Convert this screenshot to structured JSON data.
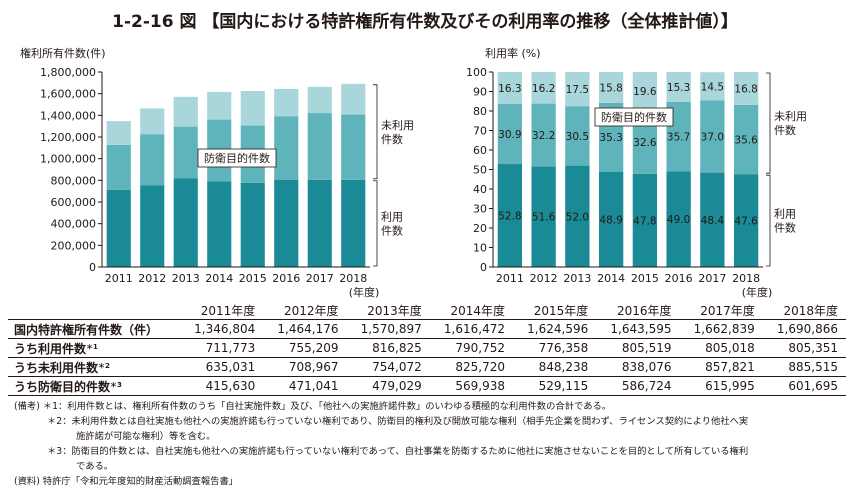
{
  "title": "1-2-16 図 【国内における特許権所有件数及びその利用率の推移（全体推計値）】",
  "chart_data": [
    {
      "type": "bar",
      "stacked": true,
      "title": "権利所有件数(件)",
      "ylabel": "権利所有件数(件)",
      "xlabel": "(年度)",
      "categories": [
        "2011",
        "2012",
        "2013",
        "2014",
        "2015",
        "2016",
        "2017",
        "2018"
      ],
      "ylim": [
        0,
        1800000
      ],
      "yticks": [
        "0",
        "200,000",
        "400,000",
        "600,000",
        "800,000",
        "1,000,000",
        "1,200,000",
        "1,400,000",
        "1,600,000",
        "1,800,000"
      ],
      "series": [
        {
          "name": "利用件数",
          "values": [
            711773,
            755209,
            816825,
            790752,
            776358,
            805519,
            805018,
            805351
          ]
        },
        {
          "name": "防衛目的件数",
          "values": [
            415630,
            471041,
            479029,
            569938,
            529115,
            586724,
            615995,
            601695
          ]
        },
        {
          "name": "未利用件数(防衛目的以外)",
          "values": [
            219401,
            237926,
            275043,
            255782,
            319123,
            251352,
            241826,
            283820
          ]
        }
      ],
      "totals": [
        1346804,
        1464176,
        1570897,
        1616472,
        1624596,
        1643595,
        1662839,
        1690866
      ],
      "annotations": {
        "defense": "防衛目的件数",
        "unused": [
          "未利用",
          "件数"
        ],
        "used": [
          "利用",
          "件数"
        ]
      },
      "colors": [
        "#1a8a96",
        "#5fb4bc",
        "#a9d6da"
      ]
    },
    {
      "type": "bar",
      "stacked": true,
      "title": "利用率(%)",
      "ylabel": "利用率 (%)",
      "xlabel": "(年度)",
      "categories": [
        "2011",
        "2012",
        "2013",
        "2014",
        "2015",
        "2016",
        "2017",
        "2018"
      ],
      "ylim": [
        0,
        100
      ],
      "yticks": [
        "0",
        "10",
        "20",
        "30",
        "40",
        "50",
        "60",
        "70",
        "80",
        "90",
        "100"
      ],
      "series": [
        {
          "name": "利用",
          "values": [
            52.8,
            51.6,
            52.0,
            48.9,
            47.8,
            49.0,
            48.4,
            47.6
          ],
          "labels": [
            "52.8",
            "51.6",
            "52.0",
            "48.9",
            "47.8",
            "49.0",
            "48.4",
            "47.6"
          ]
        },
        {
          "name": "防衛目的",
          "values": [
            30.9,
            32.2,
            30.5,
            35.3,
            32.6,
            35.7,
            37.0,
            35.6
          ],
          "labels": [
            "30.9",
            "32.2",
            "30.5",
            "35.3",
            "32.6",
            "35.7",
            "37.0",
            "35.6"
          ]
        },
        {
          "name": "未利用(防衛目的以外)",
          "values": [
            16.3,
            16.2,
            17.5,
            15.8,
            19.6,
            15.3,
            14.5,
            16.8
          ],
          "labels": [
            "16.3",
            "16.2",
            "17.5",
            "15.8",
            "19.6",
            "15.3",
            "14.5",
            "16.8"
          ]
        }
      ],
      "annotations": {
        "defense": "防衛目的件数",
        "unused": [
          "未利用",
          "件数"
        ],
        "used": [
          "利用",
          "件数"
        ]
      },
      "colors": [
        "#1a8a96",
        "#5fb4bc",
        "#a9d6da"
      ]
    }
  ],
  "table": {
    "headers": [
      "2011年度",
      "2012年度",
      "2013年度",
      "2014年度",
      "2015年度",
      "2016年度",
      "2017年度",
      "2018年度"
    ],
    "rows": [
      {
        "label": "国内特許権所有件数（件）",
        "sup": "",
        "values": [
          "1,346,804",
          "1,464,176",
          "1,570,897",
          "1,616,472",
          "1,624,596",
          "1,643,595",
          "1,662,839",
          "1,690,866"
        ]
      },
      {
        "label": "うち利用件数",
        "sup": "＊1",
        "values": [
          "711,773",
          "755,209",
          "816,825",
          "790,752",
          "776,358",
          "805,519",
          "805,018",
          "805,351"
        ]
      },
      {
        "label": "うち未利用件数",
        "sup": "＊2",
        "values": [
          "635,031",
          "708,967",
          "754,072",
          "825,720",
          "848,238",
          "838,076",
          "857,821",
          "885,515"
        ]
      },
      {
        "label": "うち防衛目的件数",
        "sup": "＊3",
        "values": [
          "415,630",
          "471,041",
          "479,029",
          "569,938",
          "529,115",
          "586,724",
          "615,995",
          "601,695"
        ]
      }
    ]
  },
  "notes": {
    "n1": "(備考) ＊1：利用件数とは、権利所有件数のうち「自社実施件数」及び、「他社への実施許諾件数」のいわゆる積極的な利用件数の合計である。",
    "n2a": "＊2：未利用件数とは自社実施も他社への実施許諾も行っていない権利であり、防衛目的権利及び開放可能な権利（相手先企業を問わず、ライセンス契約により他社へ実",
    "n2b": "施許諾が可能な権利）等を含む。",
    "n3a": "＊3：防衛目的件数とは、自社実施も他社への実施許諾も行っていない権利であって、自社事業を防衛するために他社に実施させないことを目的として所有している権利",
    "n3b": "である。",
    "source": "(資料) 特許庁「令和元年度知的財産活動調査報告書」"
  }
}
